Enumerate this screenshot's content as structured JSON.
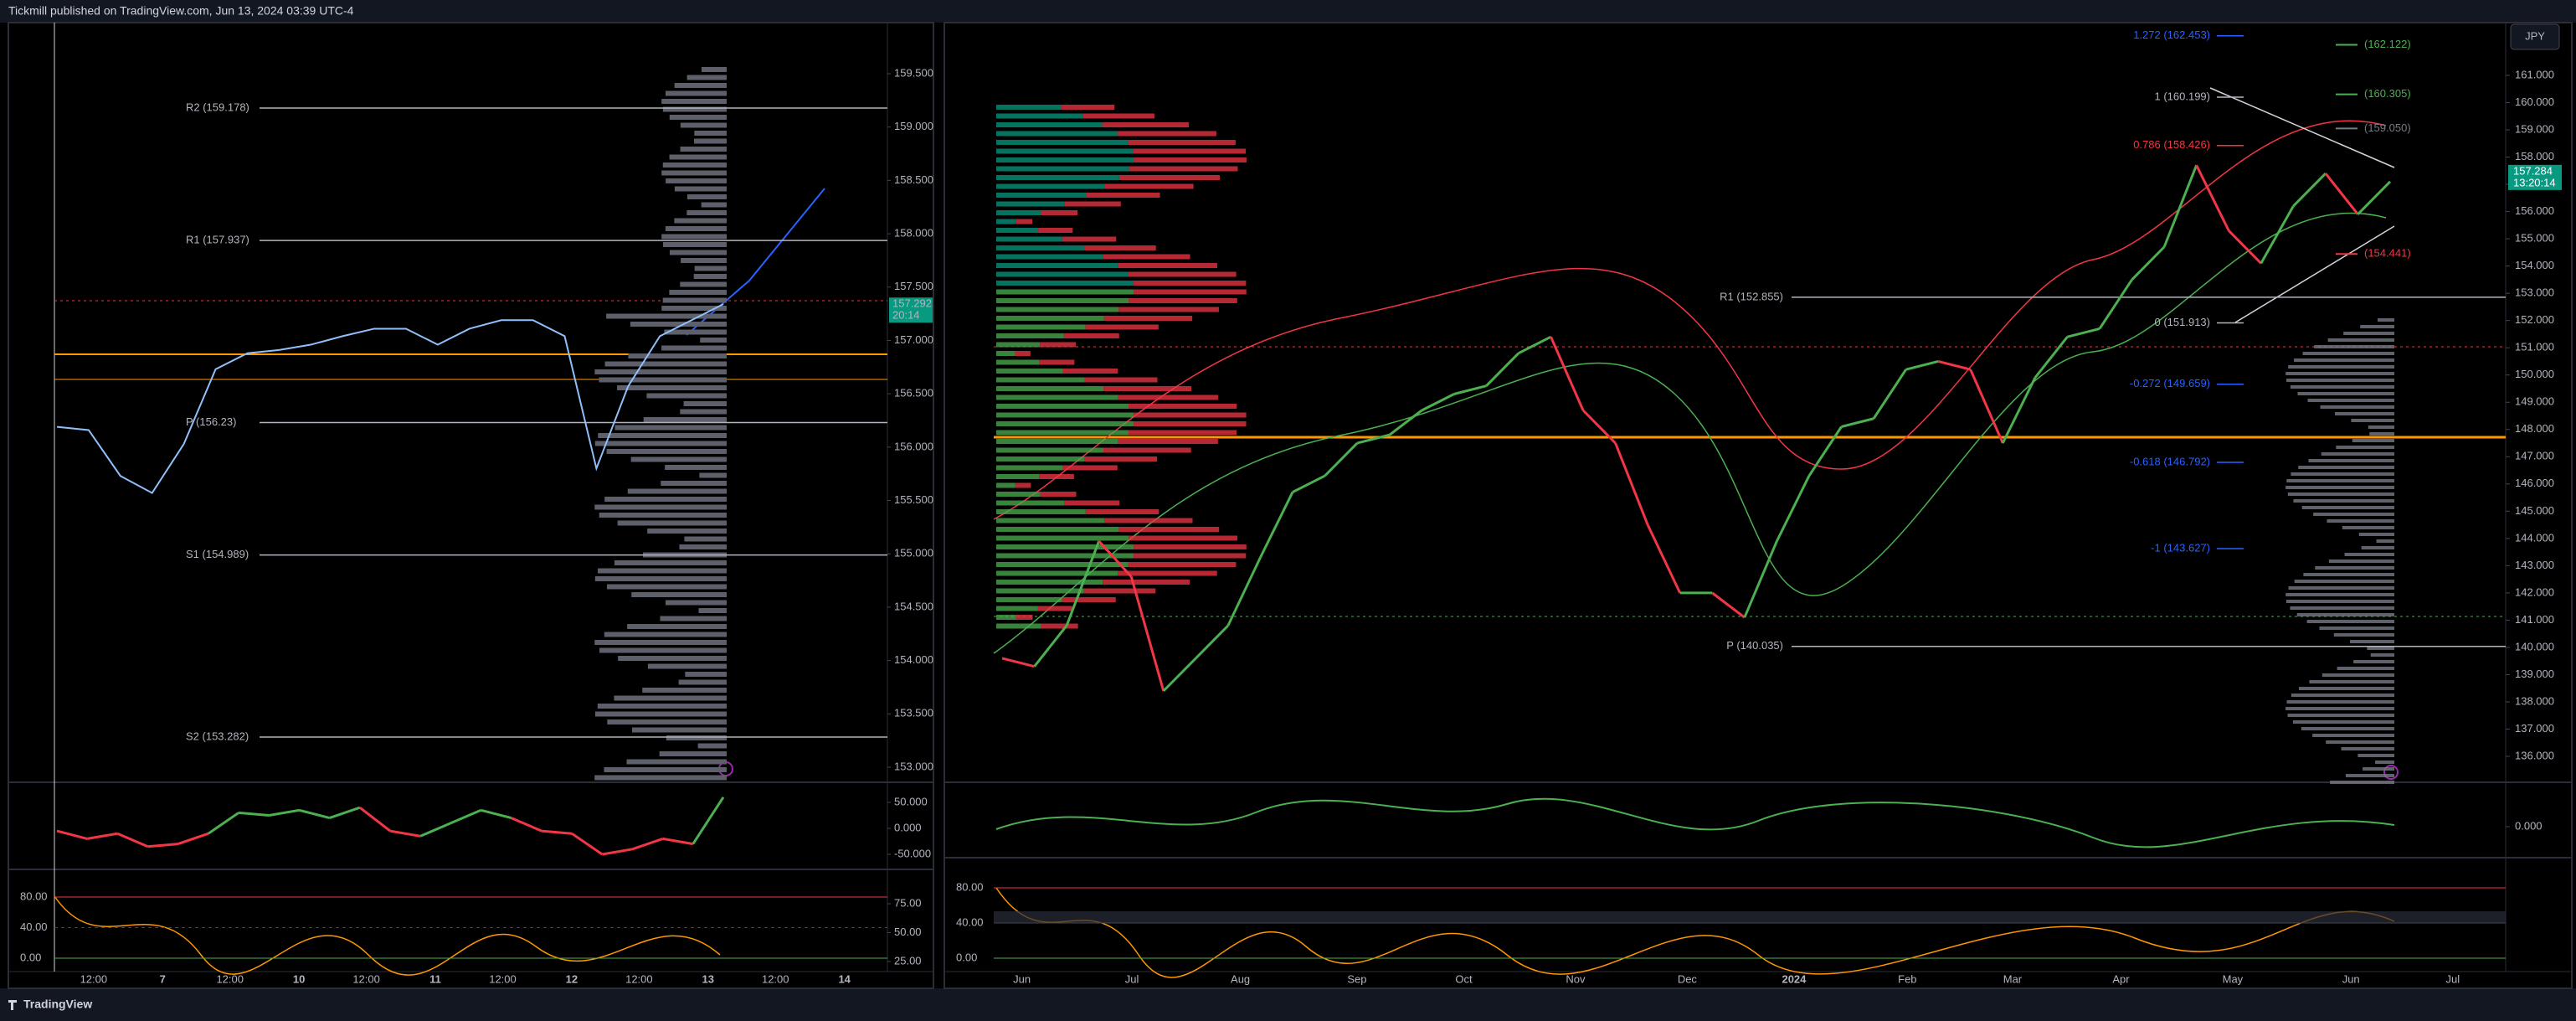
{
  "header": {
    "text": "Tickmill published on TradingView.com, Jun 13, 2024 03:39 UTC-4"
  },
  "footer": {
    "brand": "TradingView"
  },
  "left": {
    "price_ticks": [
      {
        "value": 159.5,
        "label": "159.500"
      },
      {
        "value": 159,
        "label": "159.000"
      },
      {
        "value": 158.5,
        "label": "158.500"
      },
      {
        "value": 158,
        "label": "158.000"
      },
      {
        "value": 157.5,
        "label": "157.500"
      },
      {
        "value": 157,
        "label": "157.000"
      },
      {
        "value": 156.5,
        "label": "156.500"
      },
      {
        "value": 156,
        "label": "156.000"
      },
      {
        "value": 155.5,
        "label": "155.500"
      },
      {
        "value": 155,
        "label": "155.000"
      },
      {
        "value": 154.5,
        "label": "154.500"
      },
      {
        "value": 154,
        "label": "154.000"
      },
      {
        "value": 153.5,
        "label": "153.500"
      },
      {
        "value": 153,
        "label": "153.000"
      }
    ],
    "levels": [
      {
        "label": "R2 (159.178)",
        "value": 159.178
      },
      {
        "label": "R1 (157.937)",
        "value": 157.937
      },
      {
        "label": "P (156.23)",
        "value": 156.23
      },
      {
        "label": "S1 (154.989)",
        "value": 154.989
      },
      {
        "label": "S2 (153.282)",
        "value": 153.282
      }
    ],
    "time_labels": [
      "12:00",
      "7",
      "12:00",
      "10",
      "12:00",
      "11",
      "12:00",
      "12",
      "12:00",
      "13",
      "12:00",
      "14"
    ],
    "price_tag": {
      "value": 157.292,
      "label": "157.292"
    },
    "countdown": "20:14",
    "close": [
      156.19,
      156.16,
      155.73,
      155.57,
      156.03,
      156.73,
      156.88,
      156.91,
      156.96,
      157.04,
      157.11,
      157.11,
      156.96,
      157.11,
      157.19,
      157.19,
      157.04,
      155.8,
      156.57,
      157.04,
      157.19,
      157.34
    ],
    "osc1_ticks": [
      {
        "value": 50,
        "label": "50.000"
      },
      {
        "value": 0,
        "label": "0.000"
      },
      {
        "value": -50,
        "label": "-50.000"
      }
    ],
    "osc1": [
      -5,
      -20,
      -10,
      -35,
      -30,
      -10,
      30,
      25,
      35,
      20,
      40,
      -5,
      -15,
      10,
      35,
      20,
      -5,
      -10,
      -50,
      -40,
      -20,
      -30,
      60
    ],
    "osc2_ticks_right": [
      {
        "value": 75,
        "label": "75.00"
      },
      {
        "value": 50,
        "label": "50.00"
      },
      {
        "value": 25,
        "label": "25.00"
      }
    ],
    "osc2_ticks_left": [
      {
        "value": 80,
        "label": "80.00"
      },
      {
        "value": 40,
        "label": "40.00"
      },
      {
        "value": 0,
        "label": "0.00"
      }
    ]
  },
  "right": {
    "currency": "JPY",
    "price_ticks": [
      {
        "value": 161,
        "label": "161.000"
      },
      {
        "value": 160,
        "label": "160.000"
      },
      {
        "value": 159,
        "label": "159.000"
      },
      {
        "value": 158,
        "label": "158.000"
      },
      {
        "value": 157,
        "label": "157.000"
      },
      {
        "value": 156,
        "label": "156.000"
      },
      {
        "value": 155,
        "label": "155.000"
      },
      {
        "value": 154,
        "label": "154.000"
      },
      {
        "value": 153,
        "label": "153.000"
      },
      {
        "value": 152,
        "label": "152.000"
      },
      {
        "value": 151,
        "label": "151.000"
      },
      {
        "value": 150,
        "label": "150.000"
      },
      {
        "value": 149,
        "label": "149.000"
      },
      {
        "value": 148,
        "label": "148.000"
      },
      {
        "value": 147,
        "label": "147.000"
      },
      {
        "value": 146,
        "label": "146.000"
      },
      {
        "value": 145,
        "label": "145.000"
      },
      {
        "value": 144,
        "label": "144.000"
      },
      {
        "value": 143,
        "label": "143.000"
      },
      {
        "value": 142,
        "label": "142.000"
      },
      {
        "value": 141,
        "label": "141.000"
      },
      {
        "value": 140,
        "label": "140.000"
      },
      {
        "value": 139,
        "label": "139.000"
      },
      {
        "value": 138,
        "label": "138.000"
      },
      {
        "value": 137,
        "label": "137.000"
      },
      {
        "value": 136,
        "label": "136.000"
      }
    ],
    "levels": [
      {
        "label": "R1 (152.855)",
        "value": 152.855
      },
      {
        "label": "P (140.035)",
        "value": 140.035
      }
    ],
    "fib_levels": [
      {
        "label": "1.272 (162.453)",
        "value": 162.453,
        "color": "#2962ff"
      },
      {
        "label": "1 (160.199)",
        "value": 160.199,
        "color": "#b2b5be"
      },
      {
        "label": "0.786 (158.426)",
        "value": 158.426,
        "color": "#f23645"
      },
      {
        "label": "0 (151.913)",
        "value": 151.913,
        "color": "#b2b5be"
      },
      {
        "label": "-0.272 (149.659)",
        "value": 149.659,
        "color": "#2962ff"
      },
      {
        "label": "-0.618 (146.792)",
        "value": 146.792,
        "color": "#2962ff"
      },
      {
        "label": "-1 (143.627)",
        "value": 143.627,
        "color": "#2962ff"
      }
    ],
    "side_levels": [
      {
        "label": "(162.122)",
        "value": 162.122,
        "color": "#4caf50"
      },
      {
        "label": "(160.305)",
        "value": 160.305,
        "color": "#4caf50"
      },
      {
        "label": "(159.050)",
        "value": 159.05,
        "color": "#787b86"
      },
      {
        "label": "(154.441)",
        "value": 154.441,
        "color": "#f23645"
      }
    ],
    "time_labels": [
      "Jun",
      "Jul",
      "Aug",
      "Sep",
      "Oct",
      "Nov",
      "Dec",
      "2024",
      "Feb",
      "Mar",
      "Apr",
      "May",
      "Jun",
      "Jul"
    ],
    "price_tag": {
      "value": 157.284,
      "label": "157.284"
    },
    "countdown": "13:20:14",
    "close": [
      139.6,
      139.3,
      140.8,
      143.9,
      142.6,
      138.4,
      139.6,
      140.8,
      143.3,
      145.7,
      146.3,
      147.5,
      147.8,
      148.7,
      149.3,
      149.6,
      150.8,
      151.4,
      148.7,
      147.5,
      144.5,
      142.0,
      142.0,
      141.1,
      143.9,
      146.3,
      148.1,
      148.4,
      150.2,
      150.5,
      150.2,
      147.5,
      149.9,
      151.4,
      151.7,
      153.5,
      154.7,
      157.7,
      155.3,
      154.1,
      156.2,
      157.4,
      155.9,
      157.1
    ],
    "osc1_ticks": [
      {
        "value": 0,
        "label": "0.000"
      }
    ],
    "osc2_ticks": [
      {
        "value": 80,
        "label": "80.00"
      },
      {
        "value": 40,
        "label": "40.00"
      },
      {
        "value": 0,
        "label": "0.00"
      }
    ]
  }
}
